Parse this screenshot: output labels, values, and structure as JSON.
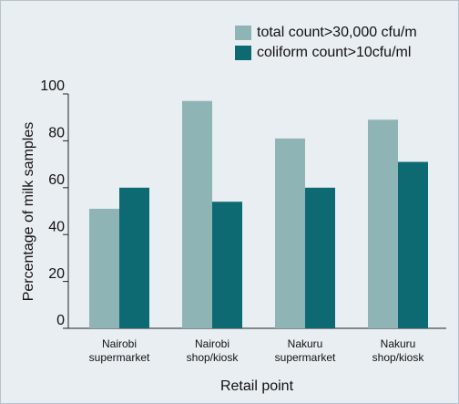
{
  "chart_data": {
    "type": "bar",
    "categories": [
      "Nairobi supermarket",
      "Nairobi shop/kiosk",
      "Nakuru supermarket",
      "Nakuru shop/kiosk"
    ],
    "series": [
      {
        "name": "total count>30,000 cfu/m",
        "color": "#8fb4b6",
        "values": [
          51,
          97,
          81,
          89
        ]
      },
      {
        "name": "coliform count>10cfu/ml",
        "color": "#0d6a72",
        "values": [
          60,
          54,
          60,
          71
        ]
      }
    ],
    "x_label": "Retail point",
    "y_label": "Percentage of milk samples",
    "ylim": [
      0,
      100
    ],
    "yticks": [
      0,
      20,
      40,
      60,
      80,
      100
    ],
    "grid": false,
    "legend": "top-right"
  }
}
